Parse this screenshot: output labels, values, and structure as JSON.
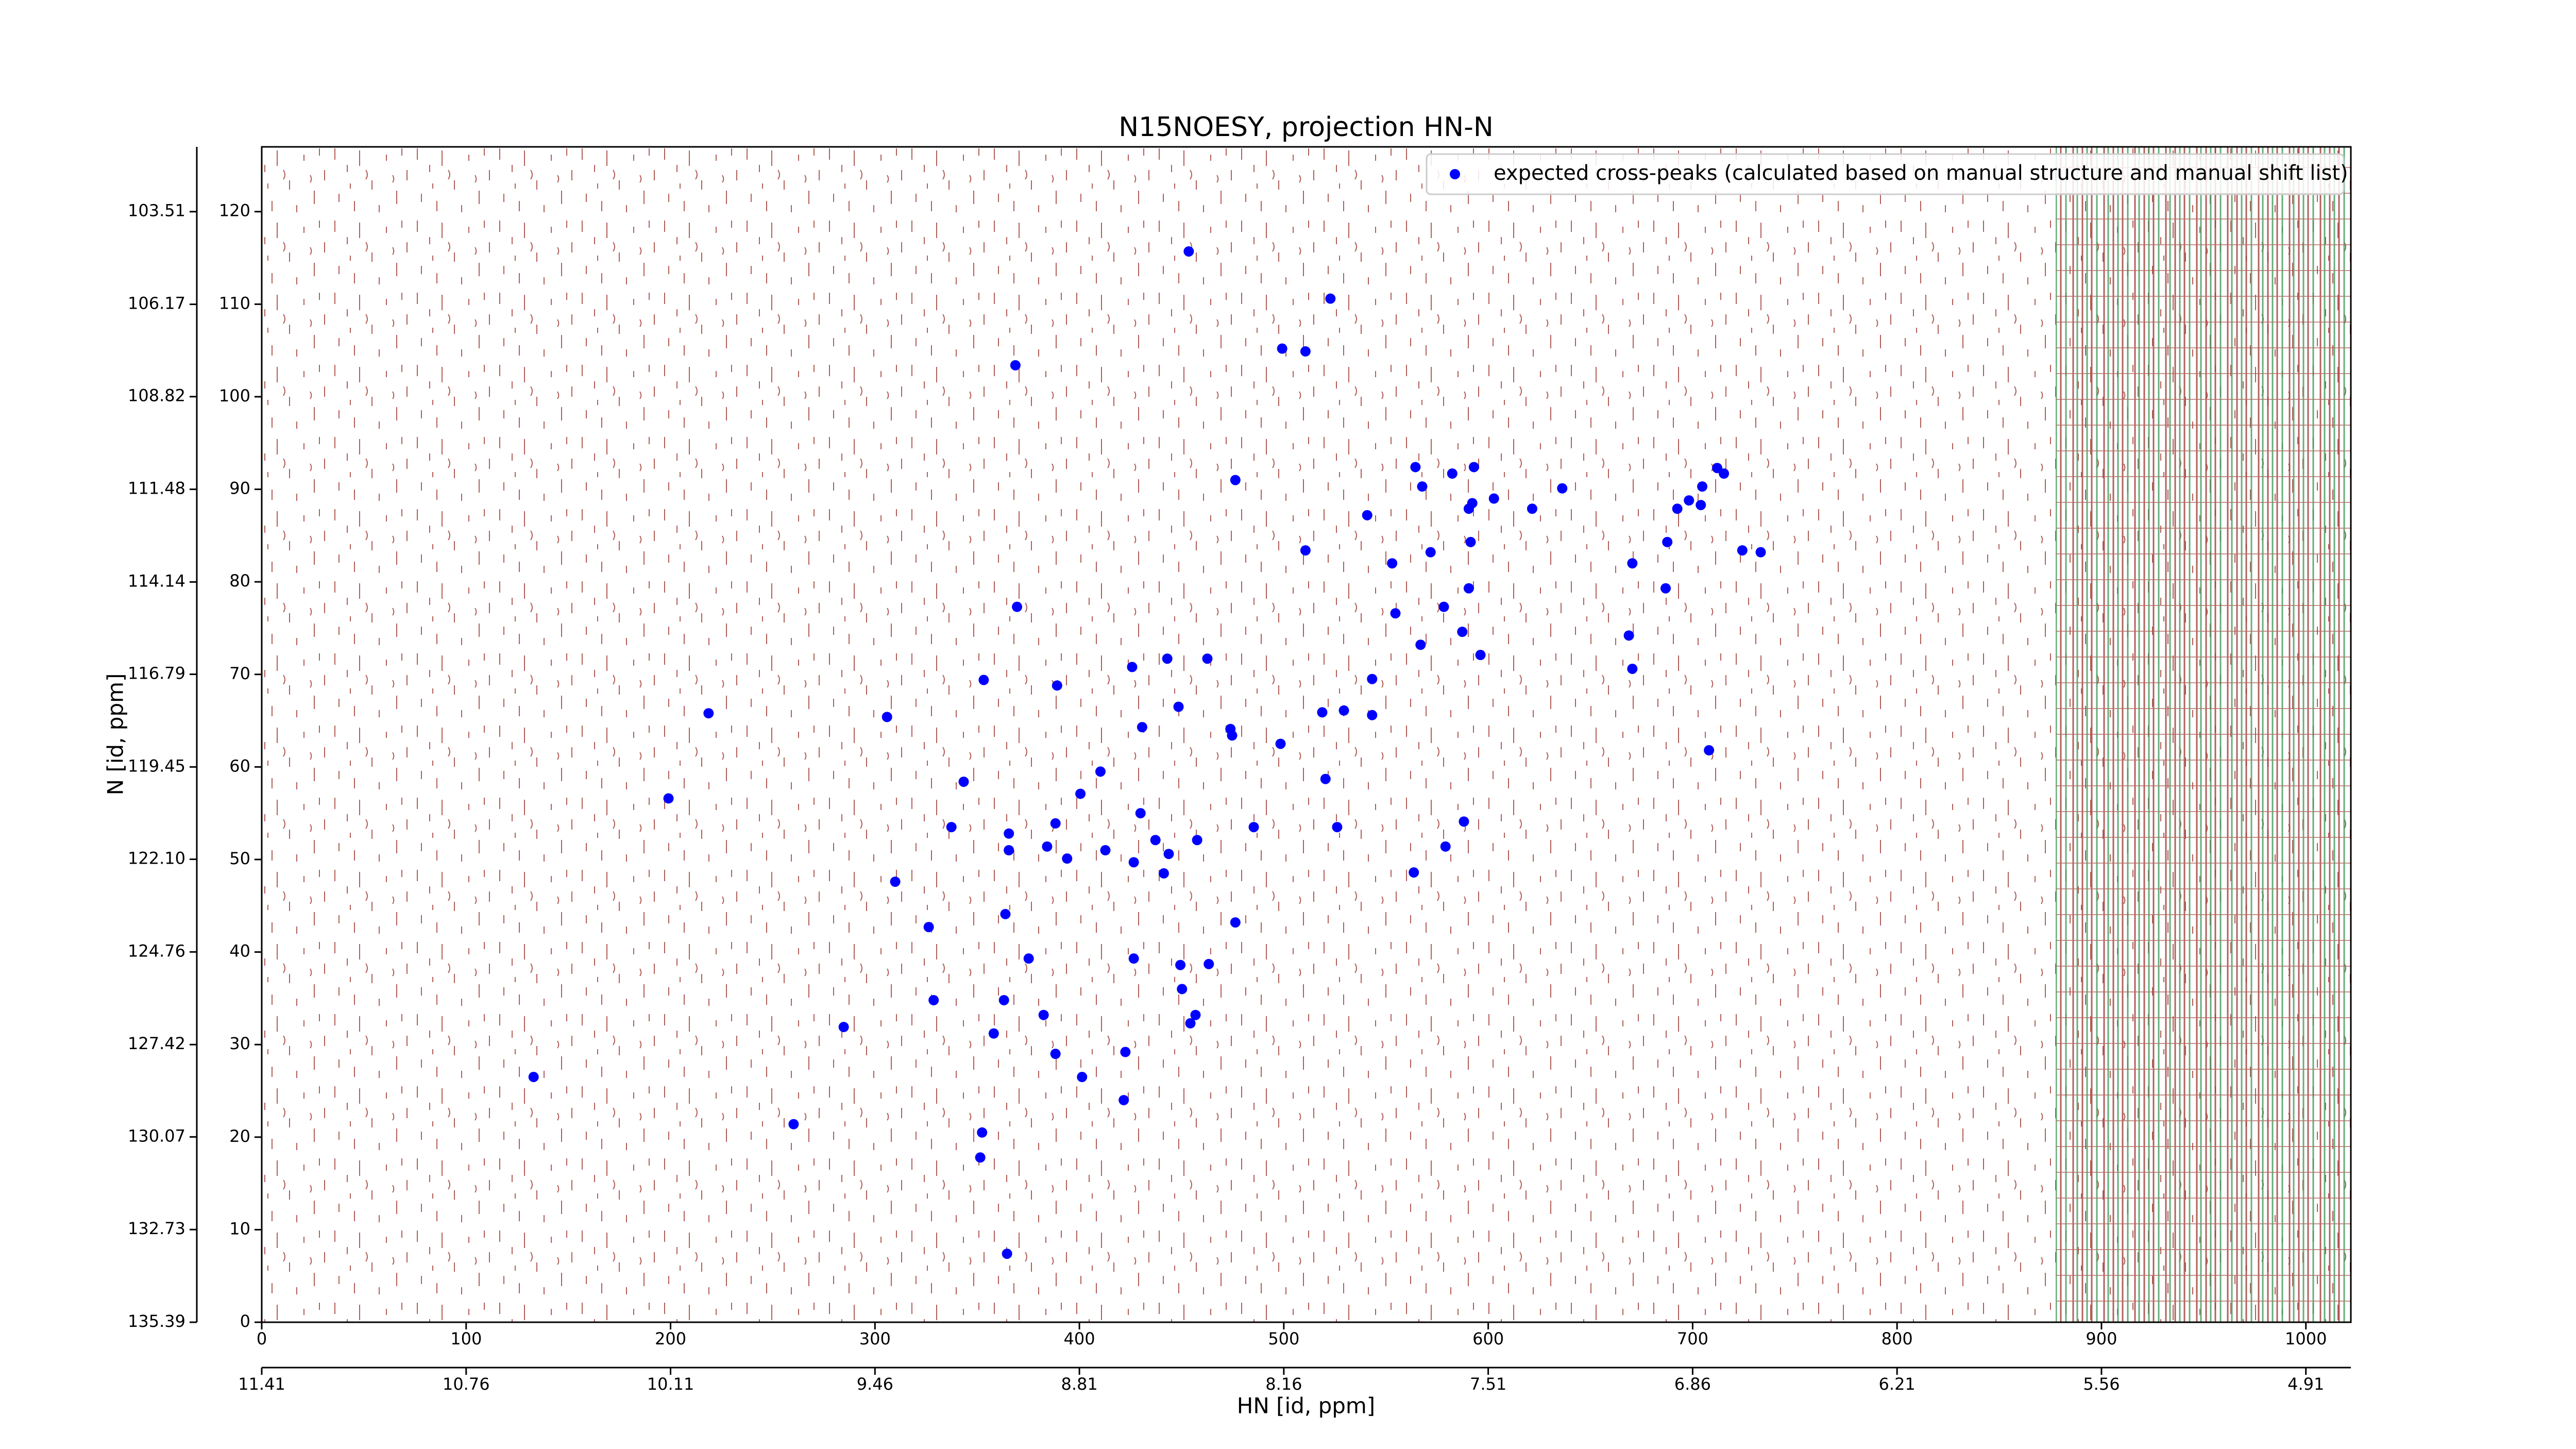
{
  "chart_data": {
    "type": "scatter",
    "title": "N15NOESY, projection HN-N",
    "xlabel": "HN [id, ppm]",
    "ylabel": "N [id, ppm]",
    "xlim": [
      0,
      1022
    ],
    "ylim": [
      0,
      127
    ],
    "xticks": [
      0,
      100,
      200,
      300,
      400,
      500,
      600,
      700,
      800,
      900,
      1000
    ],
    "yticks": [
      0,
      10,
      20,
      30,
      40,
      50,
      60,
      70,
      80,
      90,
      100,
      110,
      120
    ],
    "x2lim": [
      11.41,
      4.767
    ],
    "x2ticks": [
      11.41,
      10.76,
      10.11,
      9.46,
      8.81,
      8.16,
      7.51,
      6.86,
      6.21,
      5.56,
      4.91
    ],
    "y2lim": [
      135.39,
      101.65
    ],
    "y2ticks": [
      135.39,
      132.73,
      130.07,
      127.42,
      124.76,
      {
        "value": 122.1,
        "label": "122.10"
      },
      119.45,
      116.79,
      114.14,
      111.48,
      108.82,
      106.17,
      103.51
    ],
    "legend": "upper right",
    "series": [
      {
        "name": "expected cross-peaks (calculated based on manual structure and manual shift list)",
        "color": "#0000ff",
        "x": [
          453.5,
          522.8,
          499.2,
          510.6,
          368.7,
          476.3,
          564.4,
          567.7,
          582.4,
          593,
          602.8,
          592.2,
          590.5,
          636.2,
          621.5,
          540.8,
          510.6,
          571.8,
          591.4,
          553,
          670.5,
          687.6,
          692.5,
          698.2,
          704,
          704.7,
          712,
          715.3,
          724.3,
          733.3,
          686.8,
          590.5,
          578.3,
          554.6,
          587.3,
          566.9,
          596.2,
          668.8,
          670.5,
          369.5,
          353.2,
          389.1,
          425.8,
          443,
          462.6,
          543.2,
          448.5,
          430.7,
          473.9,
          474.7,
          498.4,
          518.8,
          529.4,
          543.2,
          305.9,
          218.6,
          199,
          343.4,
          410.3,
          520.4,
          400.5,
          429.9,
          337.4,
          365.5,
          365.5,
          388.3,
          384.2,
          394,
          412.7,
          437.2,
          443.7,
          426.6,
          441.3,
          457.6,
          485.3,
          526.1,
          588.1,
          579.1,
          563.6,
          309.9,
          363.8,
          326.3,
          476.3,
          375.2,
          426.6,
          449.4,
          463.3,
          450.2,
          328.7,
          363.1,
          382.5,
          456.8,
          454.3,
          284.7,
          358.1,
          388.3,
          422.5,
          401.3,
          421.7,
          133,
          260.2,
          352.4,
          351.5,
          364.6,
          708
        ],
        "values": [
          115.7,
          110.6,
          105.2,
          104.9,
          103.4,
          91,
          92.4,
          90.3,
          91.7,
          92.4,
          89,
          88.5,
          87.9,
          90.1,
          87.9,
          87.2,
          83.4,
          83.2,
          84.3,
          82,
          82,
          84.3,
          87.9,
          88.8,
          88.3,
          90.3,
          92.3,
          91.7,
          83.4,
          83.2,
          79.3,
          79.3,
          77.3,
          76.6,
          74.6,
          73.2,
          72.1,
          74.2,
          70.6,
          77.3,
          69.4,
          68.8,
          70.8,
          71.7,
          71.7,
          69.5,
          66.5,
          64.3,
          64.1,
          63.4,
          62.5,
          65.9,
          66.1,
          65.6,
          65.4,
          65.8,
          56.6,
          58.4,
          59.5,
          58.7,
          57.1,
          55,
          53.5,
          52.8,
          51,
          53.9,
          51.4,
          50.1,
          51,
          52.1,
          50.6,
          49.7,
          48.5,
          52.1,
          53.5,
          53.5,
          54.1,
          51.4,
          48.6,
          47.6,
          44.1,
          42.7,
          43.2,
          39.3,
          39.3,
          38.6,
          38.7,
          36,
          34.8,
          34.8,
          33.2,
          33.2,
          32.3,
          31.9,
          31.2,
          29,
          29.2,
          26.5,
          24,
          26.5,
          21.4,
          20.5,
          17.8,
          7.4,
          61.8
        ]
      }
    ]
  }
}
